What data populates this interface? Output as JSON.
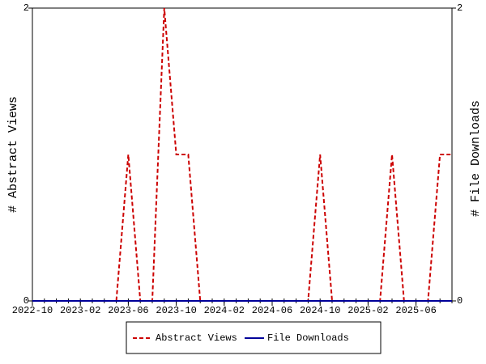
{
  "chart_data": {
    "type": "line",
    "y_label": "# Abstract Views",
    "y2_label": "# File Downloads",
    "x": [
      "2022-10",
      "2022-11",
      "2022-12",
      "2023-01",
      "2023-02",
      "2023-03",
      "2023-04",
      "2023-05",
      "2023-06",
      "2023-07",
      "2023-08",
      "2023-09",
      "2023-10",
      "2023-11",
      "2023-12",
      "2024-01",
      "2024-02",
      "2024-03",
      "2024-04",
      "2024-05",
      "2024-06",
      "2024-07",
      "2024-08",
      "2024-09",
      "2024-10",
      "2024-11",
      "2024-12",
      "2025-01",
      "2025-02",
      "2025-03",
      "2025-04",
      "2025-05",
      "2025-06",
      "2025-07",
      "2025-08",
      "2025-09"
    ],
    "xticks": [
      "2022-10",
      "2023-02",
      "2023-06",
      "2023-10",
      "2024-02",
      "2024-06",
      "2024-10",
      "2025-02",
      "2025-06"
    ],
    "series": [
      {
        "name": "Abstract Views",
        "color": "#cc0000",
        "dashed": true,
        "values": [
          0,
          0,
          0,
          0,
          0,
          0,
          0,
          0,
          1,
          0,
          0,
          2,
          1,
          1,
          0,
          0,
          0,
          0,
          0,
          0,
          0,
          0,
          0,
          0,
          1,
          0,
          0,
          0,
          0,
          0,
          1,
          0,
          0,
          0,
          1,
          1
        ]
      },
      {
        "name": "File Downloads",
        "color": "#000099",
        "axis": "y2",
        "dashed": false,
        "values": [
          0,
          0,
          0,
          0,
          0,
          0,
          0,
          0,
          0,
          0,
          0,
          0,
          0,
          0,
          0,
          0,
          0,
          0,
          0,
          0,
          0,
          0,
          0,
          0,
          0,
          0,
          0,
          0,
          0,
          0,
          0,
          0,
          0,
          0,
          0,
          0
        ]
      }
    ],
    "ylim": [
      0,
      2
    ],
    "yticks": [
      0,
      2
    ],
    "y2lim": [
      0,
      2
    ],
    "y2ticks": [
      0,
      2
    ]
  }
}
